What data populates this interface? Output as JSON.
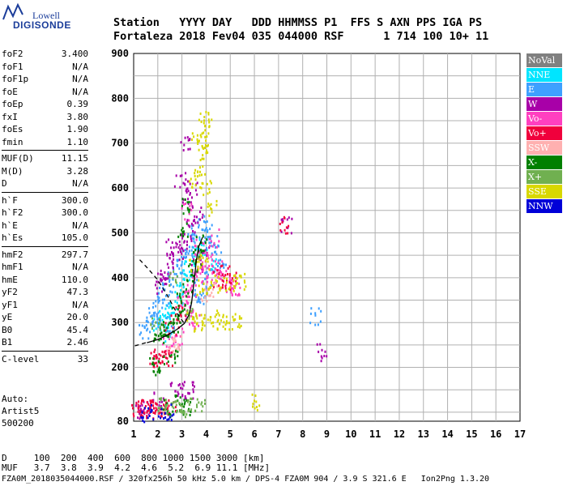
{
  "logo": {
    "brand": "Lowell",
    "product": "DIGISONDE"
  },
  "header": {
    "row1": "Station   YYYY DAY   DDD HHMMSS P1  FFS S AXN PPS IGA PS",
    "row2": "Fortaleza 2018 Fev04 035 044000 RSF      1 714 100 10+ 11"
  },
  "params": [
    {
      "name": "foF2",
      "value": "3.400"
    },
    {
      "name": "foF1",
      "value": "N/A"
    },
    {
      "name": "foF1p",
      "value": "N/A"
    },
    {
      "name": "foE",
      "value": "N/A"
    },
    {
      "name": "foEp",
      "value": "0.39"
    },
    {
      "name": "fxI",
      "value": "3.80"
    },
    {
      "name": "foEs",
      "value": "1.90"
    },
    {
      "name": "fmin",
      "value": "1.10"
    },
    {
      "name": "MUF(D)",
      "value": "11.15"
    },
    {
      "name": "M(D)",
      "value": "3.28"
    },
    {
      "name": "D",
      "value": "N/A"
    },
    {
      "name": "h`F",
      "value": "300.0"
    },
    {
      "name": "h`F2",
      "value": "300.0"
    },
    {
      "name": "h`E",
      "value": "N/A"
    },
    {
      "name": "h`Es",
      "value": "105.0"
    },
    {
      "name": "hmF2",
      "value": "297.7"
    },
    {
      "name": "hmF1",
      "value": "N/A"
    },
    {
      "name": "hmE",
      "value": "110.0"
    },
    {
      "name": "yF2",
      "value": "47.3"
    },
    {
      "name": "yF1",
      "value": "N/A"
    },
    {
      "name": "yE",
      "value": "20.0"
    },
    {
      "name": "B0",
      "value": "45.4"
    },
    {
      "name": "B1",
      "value": "2.46"
    },
    {
      "name": "C-level",
      "value": "33"
    }
  ],
  "auto": {
    "line1": "Auto:",
    "line2": "Artist5",
    "line3": "500200"
  },
  "legend": [
    {
      "label": "NoVal",
      "color": "#808080"
    },
    {
      "label": "NNE",
      "color": "#00e5ff"
    },
    {
      "label": "E",
      "color": "#3ea0ff"
    },
    {
      "label": "W",
      "color": "#a800a8"
    },
    {
      "label": "Vo-",
      "color": "#ff40c0"
    },
    {
      "label": "Vo+",
      "color": "#f0003c"
    },
    {
      "label": "SSW",
      "color": "#ffb0b0"
    },
    {
      "label": "X-",
      "color": "#008000"
    },
    {
      "label": "X+",
      "color": "#70b050"
    },
    {
      "label": "SSE",
      "color": "#d8d800"
    },
    {
      "label": "NNW",
      "color": "#0000d8"
    }
  ],
  "footer": {
    "row1": "D     100  200  400  600  800 1000 1500 3000 [km]",
    "row2": "MUF   3.7  3.8  3.9  4.2  4.6  5.2  6.9 11.1 [MHz]",
    "bottom": "FZA0M_2018035044000.RSF / 320fx256h 50 kHz 5.0 km / DPS-4 FZA0M 904 / 3.9 S 321.6 E   Ion2Png 1.3.20"
  },
  "chart_data": {
    "type": "scatter",
    "xlim": [
      1,
      17
    ],
    "ylim": [
      80,
      900
    ],
    "xticks": [
      "1",
      "2",
      "3",
      "4",
      "5",
      "6",
      "7",
      "8",
      "9",
      "10",
      "11",
      "12",
      "13",
      "14",
      "15",
      "16",
      "17"
    ],
    "yticks": [
      "80",
      "200",
      "300",
      "400",
      "500",
      "600",
      "700",
      "800",
      "900"
    ],
    "grid": true,
    "series": [
      {
        "name": "NNE",
        "color": "#00e5ff",
        "points": [
          [
            2.0,
            300
          ],
          [
            2.2,
            310
          ],
          [
            2.5,
            330
          ],
          [
            2.8,
            360
          ],
          [
            3.0,
            380
          ],
          [
            3.3,
            420
          ],
          [
            3.6,
            450
          ],
          [
            3.9,
            470
          ],
          [
            4.2,
            440
          ],
          [
            2.3,
            280
          ],
          [
            2.6,
            320
          ],
          [
            3.1,
            400
          ]
        ]
      },
      {
        "name": "E",
        "color": "#3ea0ff",
        "points": [
          [
            1.4,
            285
          ],
          [
            1.6,
            300
          ],
          [
            1.8,
            320
          ],
          [
            2.0,
            340
          ],
          [
            2.2,
            360
          ],
          [
            2.4,
            380
          ],
          [
            2.6,
            400
          ],
          [
            2.8,
            420
          ],
          [
            3.0,
            440
          ],
          [
            3.2,
            460
          ],
          [
            3.4,
            480
          ],
          [
            3.6,
            500
          ],
          [
            3.8,
            520
          ],
          [
            4.0,
            500
          ],
          [
            4.2,
            480
          ],
          [
            4.4,
            460
          ],
          [
            4.6,
            440
          ],
          [
            3.7,
            380
          ],
          [
            3.9,
            360
          ],
          [
            4.1,
            400
          ],
          [
            2.5,
            300
          ],
          [
            1.9,
            310
          ],
          [
            3.5,
            350
          ],
          [
            8.5,
            315
          ]
        ]
      },
      {
        "name": "W",
        "color": "#a800a8",
        "points": [
          [
            2.2,
            400
          ],
          [
            2.4,
            420
          ],
          [
            2.6,
            440
          ],
          [
            2.8,
            460
          ],
          [
            3.0,
            480
          ],
          [
            3.2,
            500
          ],
          [
            3.4,
            520
          ],
          [
            3.6,
            540
          ],
          [
            3.2,
            580
          ],
          [
            3.4,
            600
          ],
          [
            2.9,
            620
          ],
          [
            3.1,
            700
          ],
          [
            2.1,
            380
          ],
          [
            2.5,
            470
          ],
          [
            2.7,
            150
          ],
          [
            3.0,
            150
          ],
          [
            3.3,
            150
          ],
          [
            2.0,
            135
          ],
          [
            1.5,
            110
          ],
          [
            1.3,
            105
          ],
          [
            7.3,
            520
          ],
          [
            3.6,
            430
          ],
          [
            3.9,
            450
          ],
          [
            8.8,
            235
          ]
        ]
      },
      {
        "name": "Vo-",
        "color": "#ff40c0",
        "points": [
          [
            3.0,
            340
          ],
          [
            3.2,
            360
          ],
          [
            3.4,
            380
          ],
          [
            3.6,
            400
          ],
          [
            3.8,
            420
          ],
          [
            4.0,
            440
          ],
          [
            4.2,
            410
          ],
          [
            4.4,
            420
          ],
          [
            4.6,
            400
          ],
          [
            4.8,
            390
          ],
          [
            5.0,
            380
          ],
          [
            5.2,
            375
          ],
          [
            3.3,
            320
          ],
          [
            3.5,
            300
          ],
          [
            2.4,
            250
          ],
          [
            2.8,
            270
          ],
          [
            3.7,
            470
          ],
          [
            4.3,
            490
          ],
          [
            3.2,
            550
          ]
        ]
      },
      {
        "name": "Vo+",
        "color": "#f0003c",
        "points": [
          [
            1.1,
            110
          ],
          [
            1.3,
            110
          ],
          [
            1.5,
            110
          ],
          [
            1.7,
            108
          ],
          [
            1.9,
            110
          ],
          [
            2.1,
            112
          ],
          [
            2.3,
            110
          ],
          [
            2.5,
            110
          ],
          [
            2.0,
            220
          ],
          [
            2.2,
            220
          ],
          [
            2.4,
            218
          ],
          [
            1.8,
            222
          ],
          [
            2.5,
            290
          ],
          [
            2.7,
            310
          ],
          [
            2.9,
            330
          ],
          [
            4.5,
            400
          ],
          [
            4.8,
            410
          ],
          [
            5.0,
            395
          ],
          [
            7.2,
            520
          ]
        ]
      },
      {
        "name": "SSW",
        "color": "#ffb0b0",
        "points": [
          [
            2.6,
            250
          ],
          [
            2.8,
            260
          ],
          [
            4.0,
            370
          ],
          [
            4.2,
            380
          ]
        ]
      },
      {
        "name": "X-",
        "color": "#008000",
        "points": [
          [
            2.0,
            270
          ],
          [
            2.2,
            280
          ],
          [
            2.4,
            290
          ],
          [
            2.6,
            300
          ],
          [
            2.8,
            320
          ],
          [
            3.0,
            350
          ],
          [
            3.2,
            380
          ],
          [
            3.4,
            420
          ],
          [
            3.6,
            450
          ],
          [
            3.8,
            480
          ],
          [
            3.0,
            510
          ],
          [
            3.2,
            560
          ],
          [
            2.6,
            230
          ],
          [
            2.2,
            210
          ],
          [
            1.8,
            205
          ],
          [
            2.9,
            120
          ],
          [
            3.1,
            115
          ],
          [
            2.4,
            110
          ]
        ]
      },
      {
        "name": "X+",
        "color": "#70b050",
        "points": [
          [
            2.2,
            115
          ],
          [
            2.5,
            115
          ],
          [
            2.8,
            118
          ],
          [
            3.1,
            112
          ],
          [
            3.4,
            115
          ],
          [
            3.7,
            113
          ],
          [
            1.9,
            300
          ],
          [
            2.6,
            400
          ],
          [
            3.3,
            330
          ]
        ]
      },
      {
        "name": "SSE",
        "color": "#d8d800",
        "points": [
          [
            3.9,
            760
          ],
          [
            4.0,
            740
          ],
          [
            3.8,
            700
          ],
          [
            3.6,
            720
          ],
          [
            3.9,
            680
          ],
          [
            3.7,
            640
          ],
          [
            3.5,
            620
          ],
          [
            4.0,
            600
          ],
          [
            4.2,
            560
          ],
          [
            3.4,
            310
          ],
          [
            3.7,
            300
          ],
          [
            4.0,
            305
          ],
          [
            4.3,
            300
          ],
          [
            4.6,
            310
          ],
          [
            4.9,
            300
          ],
          [
            5.2,
            305
          ],
          [
            3.8,
            380
          ],
          [
            4.3,
            390
          ],
          [
            4.7,
            385
          ],
          [
            5.1,
            390
          ],
          [
            5.4,
            395
          ],
          [
            3.5,
            430
          ],
          [
            3.9,
            440
          ],
          [
            6.1,
            125
          ]
        ]
      },
      {
        "name": "NNW",
        "color": "#0000d8",
        "points": [
          [
            1.5,
            100
          ],
          [
            1.9,
            100
          ],
          [
            2.4,
            100
          ]
        ]
      }
    ],
    "curves": [
      {
        "name": "profile-solid",
        "color": "#000000",
        "style": "solid",
        "points": [
          [
            1.55,
            255
          ],
          [
            2.0,
            262
          ],
          [
            2.4,
            272
          ],
          [
            2.8,
            285
          ],
          [
            3.1,
            298
          ],
          [
            3.3,
            318
          ],
          [
            3.4,
            345
          ],
          [
            3.5,
            390
          ],
          [
            3.6,
            440
          ],
          [
            3.7,
            470
          ],
          [
            3.85,
            490
          ]
        ]
      },
      {
        "name": "profile-dashed",
        "color": "#000000",
        "style": "dashed",
        "points": [
          [
            1.25,
            440
          ],
          [
            1.6,
            420
          ],
          [
            2.0,
            395
          ],
          [
            2.4,
            360
          ],
          [
            2.8,
            320
          ],
          [
            3.1,
            298
          ]
        ]
      },
      {
        "name": "profile-lower-dashed",
        "color": "#000000",
        "style": "dashed",
        "points": [
          [
            1.05,
            248
          ],
          [
            1.5,
            255
          ]
        ]
      }
    ]
  }
}
